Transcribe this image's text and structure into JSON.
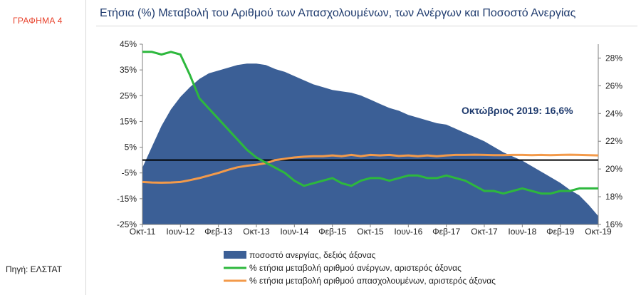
{
  "sidebar": {
    "graph_label": "ΓΡΑΦΗΜΑ 4",
    "source": "Πηγή: ΕΛΣΤΑΤ"
  },
  "chart_data": {
    "type": "area+line",
    "title": "Ετήσια (%) Μεταβολή του Αριθμού των Απασχολουμένων, των Ανέργων και Ποσοστό Ανεργίας",
    "x_tick_labels": [
      "Οκτ-11",
      "Ιουν-12",
      "Φεβ-13",
      "Οκτ-13",
      "Ιουν-14",
      "Φεβ-15",
      "Οκτ-15",
      "Ιουν-16",
      "Φεβ-17",
      "Οκτ-17",
      "Ιουν-18",
      "Φεβ-19",
      "Οκτ-19"
    ],
    "x_tick_month_index": [
      0,
      8,
      16,
      24,
      32,
      40,
      48,
      56,
      64,
      72,
      80,
      88,
      96
    ],
    "left_axis": {
      "min": -25,
      "max": 45,
      "ticks": [
        45,
        35,
        25,
        15,
        5,
        -5,
        -15,
        -25
      ],
      "tick_labels": [
        "45%",
        "35%",
        "25%",
        "15%",
        "5%",
        "-5%",
        "-15%",
        "-25%"
      ]
    },
    "right_axis": {
      "min": 16,
      "max": 29,
      "ticks": [
        28,
        26,
        24,
        22,
        20,
        18,
        16
      ],
      "tick_labels": [
        "28%",
        "26%",
        "24%",
        "22%",
        "20%",
        "18%",
        "16%"
      ]
    },
    "annotation": "Οκτώβριος 2019:  16,6%",
    "legend": [
      {
        "name": "ποσοστό ανεργίας,  δεξιός άξονας",
        "color": "#3b5f96",
        "kind": "area"
      },
      {
        "name": "% ετήσια μεταβολή αριθμού ανέργων,  αριστερός άξονας",
        "color": "#2db83d",
        "kind": "line"
      },
      {
        "name": "% ετήσια μεταβολή αριθμού απασχολουμένων,  αριστερός άξονας",
        "color": "#f39a4a",
        "kind": "line"
      }
    ],
    "series": [
      {
        "name": "unemployment_rate",
        "axis": "right",
        "month_index": [
          0,
          2,
          4,
          6,
          8,
          10,
          12,
          14,
          16,
          18,
          20,
          22,
          24,
          26,
          28,
          30,
          32,
          34,
          36,
          38,
          40,
          42,
          44,
          46,
          48,
          50,
          52,
          54,
          56,
          58,
          60,
          62,
          64,
          66,
          68,
          70,
          72,
          74,
          76,
          78,
          80,
          82,
          84,
          86,
          88,
          90,
          92,
          94,
          96
        ],
        "values": [
          20.1,
          21.6,
          23.1,
          24.3,
          25.2,
          25.9,
          26.5,
          26.9,
          27.1,
          27.3,
          27.5,
          27.6,
          27.6,
          27.5,
          27.2,
          27.0,
          26.7,
          26.4,
          26.1,
          25.9,
          25.7,
          25.6,
          25.5,
          25.3,
          25.0,
          24.7,
          24.4,
          24.2,
          23.9,
          23.7,
          23.5,
          23.3,
          23.2,
          22.9,
          22.6,
          22.3,
          22.0,
          21.6,
          21.2,
          20.9,
          20.6,
          20.2,
          19.8,
          19.4,
          19.0,
          18.5,
          18.1,
          17.4,
          16.6
        ]
      },
      {
        "name": "unemployed_change",
        "axis": "left",
        "month_index": [
          0,
          2,
          4,
          6,
          8,
          10,
          12,
          14,
          16,
          18,
          20,
          22,
          24,
          26,
          28,
          30,
          32,
          34,
          36,
          38,
          40,
          42,
          44,
          46,
          48,
          50,
          52,
          54,
          56,
          58,
          60,
          62,
          64,
          66,
          68,
          70,
          72,
          74,
          76,
          78,
          80,
          82,
          84,
          86,
          88,
          90,
          92,
          94,
          96
        ],
        "values": [
          42.0,
          42.0,
          41.0,
          42.0,
          41.0,
          33.0,
          24.0,
          20.0,
          16.0,
          12.0,
          8.0,
          4.0,
          1.0,
          -1.0,
          -3.0,
          -5.0,
          -8.0,
          -10.0,
          -9.0,
          -8.0,
          -7.0,
          -9.0,
          -10.0,
          -8.0,
          -7.0,
          -7.0,
          -8.0,
          -7.0,
          -6.0,
          -6.0,
          -7.0,
          -7.0,
          -6.0,
          -7.0,
          -8.0,
          -10.0,
          -12.0,
          -12.0,
          -13.0,
          -12.0,
          -11.0,
          -12.0,
          -13.0,
          -13.0,
          -12.0,
          -12.0,
          -11.0,
          -11.0,
          -11.0
        ]
      },
      {
        "name": "employed_change",
        "axis": "left",
        "month_index": [
          0,
          2,
          4,
          6,
          8,
          10,
          12,
          14,
          16,
          18,
          20,
          22,
          24,
          26,
          28,
          30,
          32,
          34,
          36,
          38,
          40,
          42,
          44,
          46,
          48,
          50,
          52,
          54,
          56,
          58,
          60,
          62,
          64,
          66,
          68,
          70,
          72,
          74,
          76,
          78,
          80,
          82,
          84,
          86,
          88,
          90,
          92,
          94,
          96
        ],
        "values": [
          -8.5,
          -8.7,
          -8.8,
          -8.7,
          -8.5,
          -7.8,
          -7.0,
          -6.0,
          -5.0,
          -3.8,
          -2.8,
          -2.2,
          -1.8,
          -1.2,
          0.0,
          0.5,
          1.0,
          1.3,
          1.5,
          1.5,
          1.8,
          1.5,
          2.0,
          1.5,
          2.0,
          1.8,
          2.0,
          1.6,
          1.8,
          1.5,
          1.8,
          1.5,
          1.8,
          2.0,
          2.0,
          2.1,
          2.0,
          1.9,
          1.9,
          2.0,
          2.0,
          1.9,
          2.0,
          1.9,
          2.0,
          2.1,
          2.0,
          1.9,
          1.8
        ]
      }
    ]
  }
}
